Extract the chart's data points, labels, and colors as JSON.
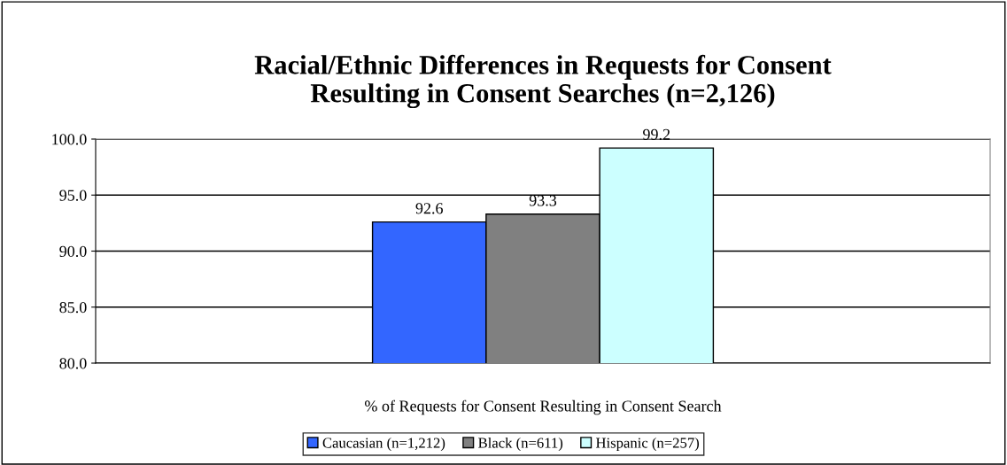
{
  "chart_data": {
    "type": "bar",
    "title": "Racial/Ethnic Differences in Requests for Consent\nResulting in Consent Searches (n=2,126)",
    "categories": [
      "% of Requests for Consent Resulting in Consent Search"
    ],
    "series": [
      {
        "name": "Caucasian (n=1,212)",
        "color": "#3366ff",
        "values": [
          92.6
        ]
      },
      {
        "name": "Black (n=611)",
        "color": "#808080",
        "values": [
          93.3
        ]
      },
      {
        "name": "Hispanic (n=257)",
        "color": "#ccffff",
        "values": [
          99.2
        ]
      }
    ],
    "ylim": [
      80,
      100
    ],
    "yticks": [
      {
        "value": 80,
        "label": "80.0"
      },
      {
        "value": 85,
        "label": "85.0"
      },
      {
        "value": 90,
        "label": "90.0"
      },
      {
        "value": 95,
        "label": "95.0"
      },
      {
        "value": 100,
        "label": "100.0"
      }
    ],
    "grid": "y",
    "legend": "bottom",
    "data_labels": true
  }
}
